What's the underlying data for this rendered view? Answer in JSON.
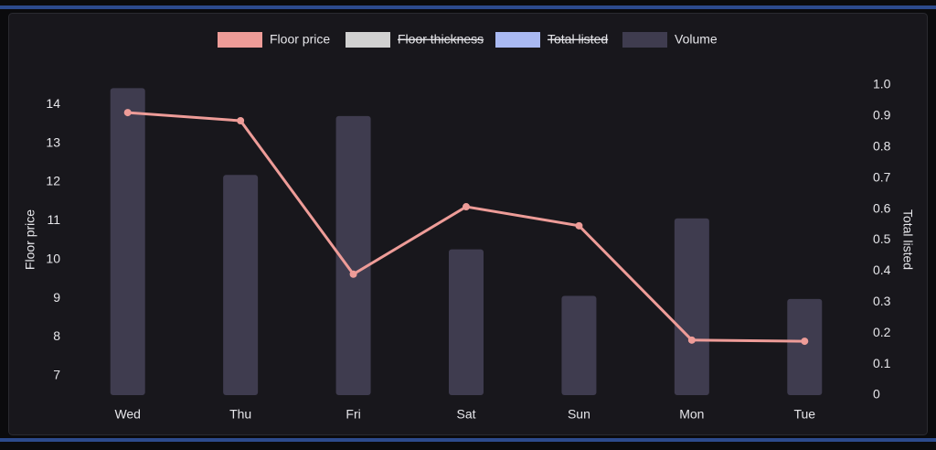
{
  "chart_data": {
    "type": "bar-line",
    "categories": [
      "Wed",
      "Thu",
      "Fri",
      "Sat",
      "Sun",
      "Mon",
      "Tue"
    ],
    "series": [
      {
        "name": "Floor price",
        "type": "line",
        "color": "#ee9c98",
        "axis": "y",
        "values": [
          13.79,
          13.58,
          9.62,
          11.36,
          10.87,
          7.92,
          7.89
        ]
      },
      {
        "name": "Floor thickness",
        "type": "line",
        "color": "#e6e6e6",
        "hidden": true
      },
      {
        "name": "Total listed",
        "type": "line",
        "color": "#a9b9f2",
        "hidden": true
      },
      {
        "name": "Volume",
        "type": "bar",
        "color": "#3f3c4f",
        "axis": "y2",
        "values": [
          0.99,
          0.71,
          0.9,
          0.47,
          0.32,
          0.57,
          0.31
        ]
      }
    ],
    "ylabel": "Floor price",
    "y2label": "Total listed",
    "ylim": [
      6.5,
      14.5
    ],
    "yticks": [
      7,
      8,
      9,
      10,
      11,
      12,
      13,
      14
    ],
    "y2lim": [
      0,
      1
    ],
    "y2ticks": [
      0,
      0.1,
      0.2,
      0.3,
      0.4,
      0.5,
      0.6,
      0.7,
      0.8,
      0.9,
      {
        "value": 1,
        "label": "1.0"
      }
    ],
    "grid": false
  }
}
